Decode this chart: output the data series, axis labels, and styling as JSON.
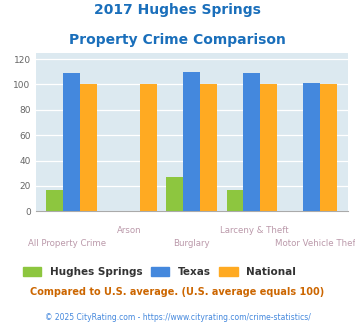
{
  "title_line1": "2017 Hughes Springs",
  "title_line2": "Property Crime Comparison",
  "title_color": "#1a6fbb",
  "categories": [
    "All Property Crime",
    "Arson",
    "Burglary",
    "Larceny & Theft",
    "Motor Vehicle Theft"
  ],
  "hughes_springs": [
    17,
    0,
    27,
    17,
    0
  ],
  "texas": [
    109,
    0,
    110,
    109,
    101
  ],
  "national": [
    100,
    100,
    100,
    100,
    100
  ],
  "bar_colors": {
    "hughes_springs": "#8dc63f",
    "texas": "#4488dd",
    "national": "#ffaa22"
  },
  "ylim": [
    0,
    125
  ],
  "yticks": [
    0,
    20,
    40,
    60,
    80,
    100,
    120
  ],
  "xlabel_top": [
    "",
    "Arson",
    "",
    "Larceny & Theft",
    ""
  ],
  "xlabel_bottom": [
    "All Property Crime",
    "",
    "Burglary",
    "",
    "Motor Vehicle Theft"
  ],
  "legend_labels": [
    "Hughes Springs",
    "Texas",
    "National"
  ],
  "footnote1": "Compared to U.S. average. (U.S. average equals 100)",
  "footnote2": "© 2025 CityRating.com - https://www.cityrating.com/crime-statistics/",
  "plot_bg_color": "#dce9f0",
  "grid_color": "#c0d4de",
  "footnote1_color": "#cc6600",
  "footnote2_color": "#4488dd"
}
